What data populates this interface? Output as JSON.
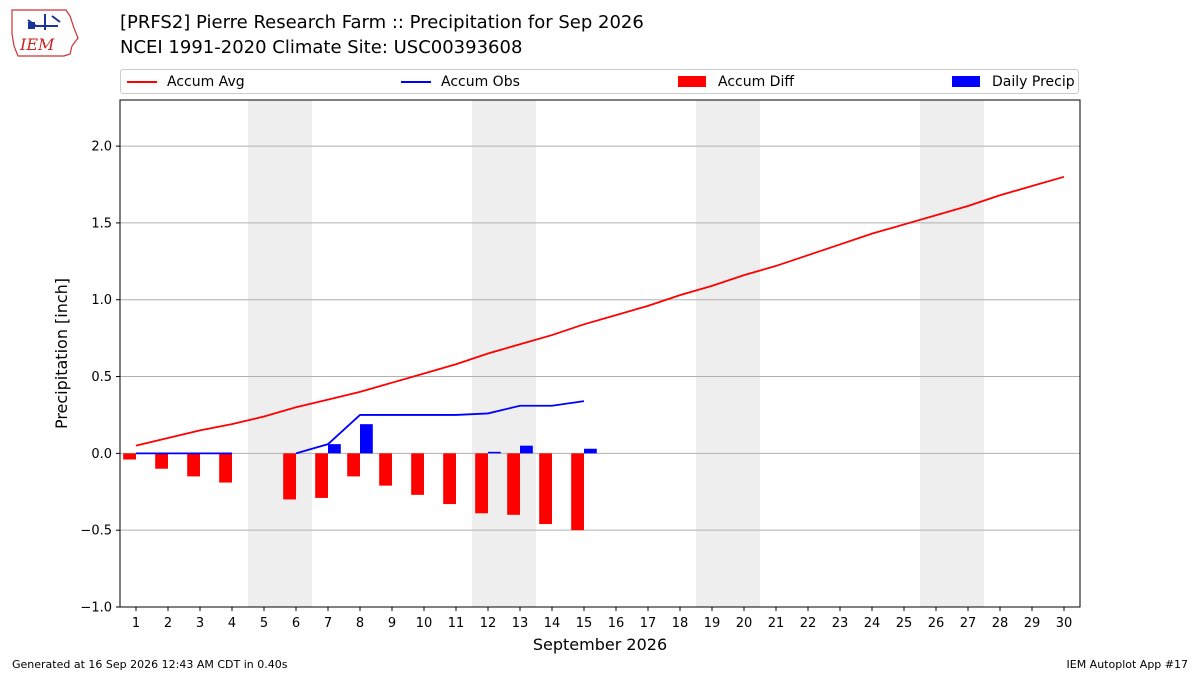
{
  "header": {
    "logo_text": "IEM",
    "title_line1": "[PRFS2] Pierre Research Farm :: Precipitation for Sep 2026",
    "title_line2": "NCEI 1991-2020 Climate Site: USC00393608"
  },
  "legend": [
    {
      "label": "Accum Avg",
      "kind": "line",
      "color": "#ff0000"
    },
    {
      "label": "Accum Obs",
      "kind": "line",
      "color": "#0000ff"
    },
    {
      "label": "Accum Diff",
      "kind": "bar",
      "color": "#ff0000"
    },
    {
      "label": "Daily Precip",
      "kind": "bar",
      "color": "#0000ff"
    }
  ],
  "footer": {
    "left": "Generated at 16 Sep 2026 12:43 AM CDT in 0.40s",
    "right": "IEM Autoplot App #17"
  },
  "chart_data": {
    "type": "bar",
    "title": "[PRFS2] Pierre Research Farm :: Precipitation for Sep 2026",
    "subtitle": "NCEI 1991-2020 Climate Site: USC00393608",
    "xlabel": "September 2026",
    "ylabel": "Precipitation [inch]",
    "xlim": [
      0.5,
      30.5
    ],
    "ylim": [
      -1.0,
      2.3
    ],
    "yticks": [
      -1.0,
      -0.5,
      0.0,
      0.5,
      1.0,
      1.5,
      2.0
    ],
    "ytick_labels": [
      "−1.0",
      "−0.5",
      "0.0",
      "0.5",
      "1.0",
      "1.5",
      "2.0"
    ],
    "xticks": [
      1,
      2,
      3,
      4,
      5,
      6,
      7,
      8,
      9,
      10,
      11,
      12,
      13,
      14,
      15,
      16,
      17,
      18,
      19,
      20,
      21,
      22,
      23,
      24,
      25,
      26,
      27,
      28,
      29,
      30
    ],
    "grid": "horizontal",
    "legend_position": "top",
    "weekend_shading": [
      [
        5,
        6
      ],
      [
        12,
        13
      ],
      [
        19,
        20
      ],
      [
        26,
        27
      ]
    ],
    "shade_color": "#eeeeee",
    "series": [
      {
        "name": "Accum Avg",
        "kind": "line",
        "color": "#ff0000",
        "x": [
          1,
          2,
          3,
          4,
          5,
          6,
          7,
          8,
          9,
          10,
          11,
          12,
          13,
          14,
          15,
          16,
          17,
          18,
          19,
          20,
          21,
          22,
          23,
          24,
          25,
          26,
          27,
          28,
          29,
          30
        ],
        "values": [
          0.05,
          0.1,
          0.15,
          0.19,
          0.24,
          0.3,
          0.35,
          0.4,
          0.46,
          0.52,
          0.58,
          0.65,
          0.71,
          0.77,
          0.84,
          0.9,
          0.96,
          1.03,
          1.09,
          1.16,
          1.22,
          1.29,
          1.36,
          1.43,
          1.49,
          1.55,
          1.61,
          1.68,
          1.74,
          1.8
        ]
      },
      {
        "name": "Accum Obs",
        "kind": "line",
        "color": "#0000ff",
        "x": [
          1,
          2,
          3,
          4,
          6,
          7,
          8,
          9,
          10,
          11,
          12,
          13,
          14,
          15
        ],
        "values": [
          0.0,
          0.0,
          0.0,
          0.0,
          0.0,
          0.06,
          0.25,
          0.25,
          0.25,
          0.25,
          0.26,
          0.31,
          0.31,
          0.34
        ],
        "breaks_after": [
          4
        ]
      },
      {
        "name": "Accum Diff",
        "kind": "bar",
        "color": "#ff0000",
        "x": [
          1,
          2,
          3,
          4,
          6,
          7,
          8,
          9,
          10,
          11,
          12,
          13,
          14,
          15
        ],
        "values": [
          -0.04,
          -0.1,
          -0.15,
          -0.19,
          -0.3,
          -0.29,
          -0.15,
          -0.21,
          -0.27,
          -0.33,
          -0.39,
          -0.4,
          -0.46,
          -0.5
        ]
      },
      {
        "name": "Daily Precip",
        "kind": "bar",
        "color": "#0000ff",
        "x": [
          7,
          8,
          12,
          13,
          15
        ],
        "values": [
          0.06,
          0.19,
          0.01,
          0.05,
          0.03
        ]
      }
    ]
  }
}
